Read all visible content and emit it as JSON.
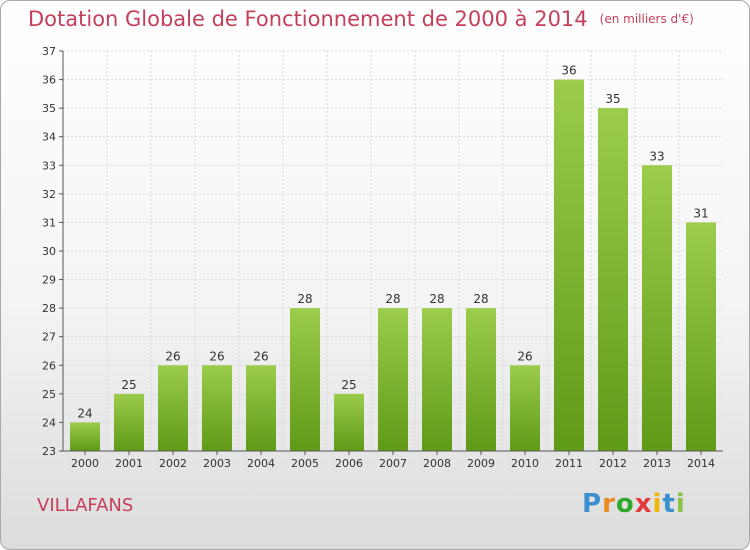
{
  "chart_data": {
    "type": "bar",
    "title": "Dotation Globale de Fonctionnement de 2000 à 2014",
    "unit": "(en milliers d'€)",
    "categories": [
      "2000",
      "2001",
      "2002",
      "2003",
      "2004",
      "2005",
      "2006",
      "2007",
      "2008",
      "2009",
      "2010",
      "2011",
      "2012",
      "2013",
      "2014"
    ],
    "values": [
      24,
      25,
      26,
      26,
      26,
      28,
      25,
      28,
      28,
      28,
      26,
      36,
      35,
      33,
      31
    ],
    "ylim": [
      23,
      37
    ],
    "yticks": [
      23,
      24,
      25,
      26,
      27,
      28,
      29,
      30,
      31,
      32,
      33,
      34,
      35,
      36,
      37
    ],
    "grid": true,
    "colors": {
      "bar_light": "#9ccc4c",
      "bar_dark": "#5f9a17",
      "title": "#c4405a"
    }
  },
  "footer": {
    "commune": "VILLAFANS"
  },
  "logo": {
    "letters": [
      "P",
      "r",
      "o",
      "x",
      "i",
      "t",
      "i"
    ],
    "colors": [
      "#3a8fd0",
      "#e9891f",
      "#2ea82a",
      "#e23b3b",
      "#f2b705",
      "#3a8fd0",
      "#8bc34a"
    ]
  }
}
